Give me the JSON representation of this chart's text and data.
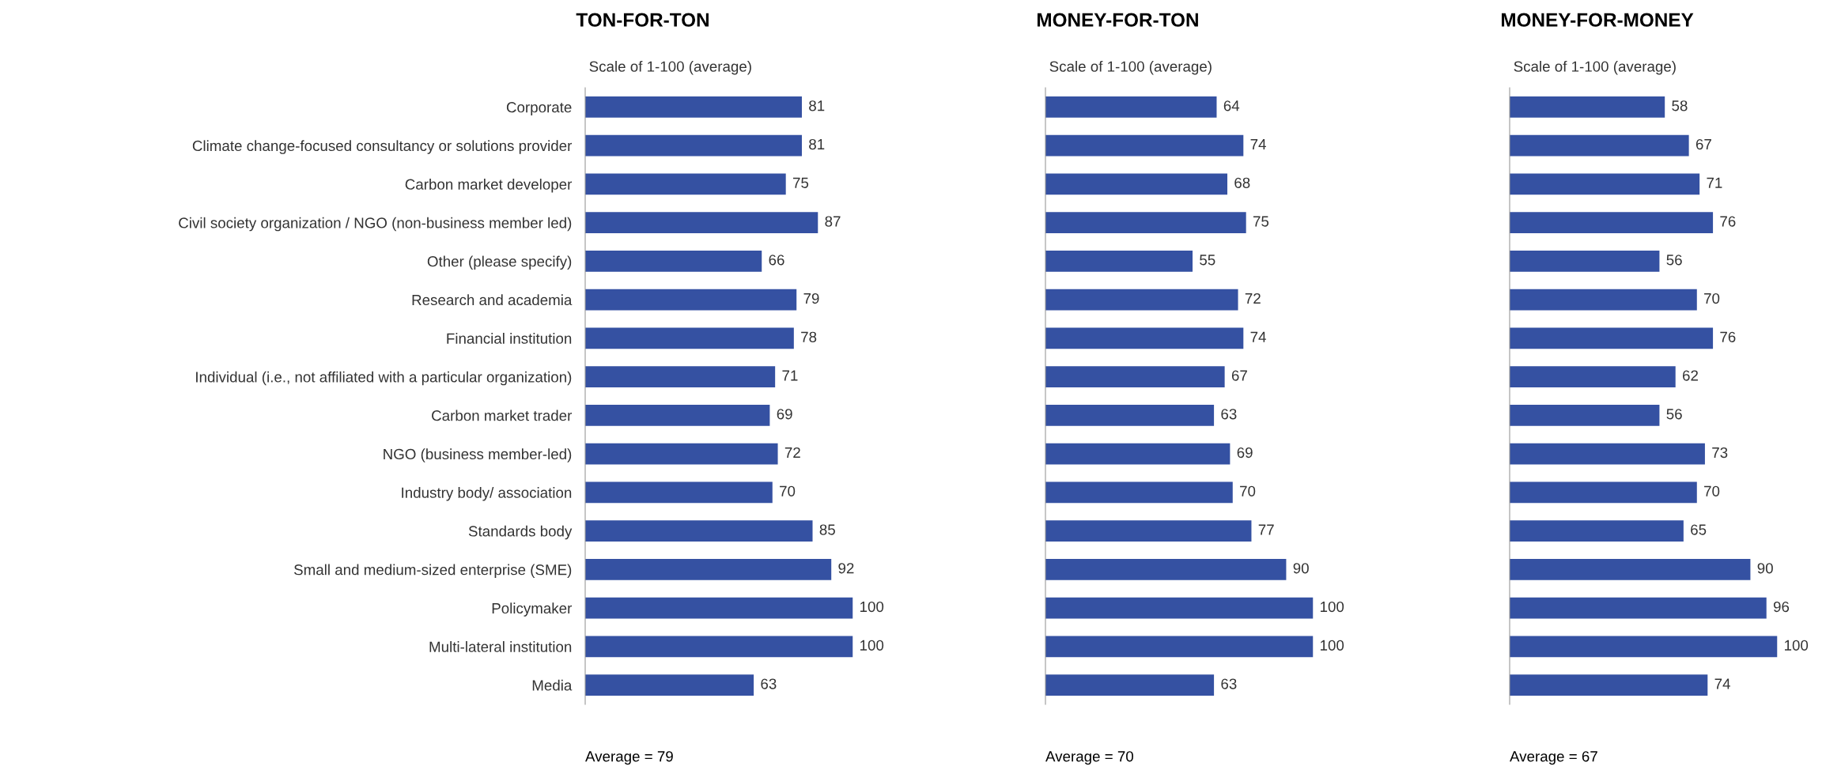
{
  "chart_data": [
    {
      "type": "bar",
      "orientation": "horizontal",
      "title": "TON-FOR-TON",
      "subtitle": "Scale of 1-100 (average)",
      "annotations": [
        "Average = 79"
      ],
      "tick_labels": "y",
      "data_labels": true,
      "color": "#3551a2",
      "categories": [
        "Corporate",
        "Climate change-focused consultancy or solutions provider",
        "Carbon market developer",
        "Civil society organization / NGO (non-business member led)",
        "Other (please specify)",
        "Research and academia",
        "Financial institution",
        "Individual (i.e., not affiliated with a particular organization)",
        "Carbon market trader",
        "NGO (business member-led)",
        "Industry body/ association",
        "Standards body",
        "Small and medium-sized enterprise (SME)",
        "Policymaker",
        "Multi-lateral institution",
        "Media"
      ],
      "values": [
        81,
        81,
        75,
        87,
        66,
        79,
        78,
        71,
        69,
        72,
        70,
        85,
        92,
        100,
        100,
        63
      ]
    },
    {
      "type": "bar",
      "orientation": "horizontal",
      "title": "MONEY-FOR-TON",
      "subtitle": "Scale of 1-100 (average)",
      "annotations": [
        "Average = 70"
      ],
      "tick_labels": false,
      "data_labels": true,
      "color": "#3551a2",
      "categories": [
        null,
        null,
        null,
        null,
        null,
        null,
        null,
        null,
        null,
        null,
        null,
        null,
        null,
        null,
        null,
        null
      ],
      "values": [
        64,
        74,
        68,
        75,
        55,
        72,
        74,
        67,
        63,
        69,
        70,
        77,
        90,
        100,
        100,
        63
      ]
    },
    {
      "type": "bar",
      "orientation": "horizontal",
      "title": "MONEY-FOR-MONEY",
      "subtitle": "Scale of 1-100 (average)",
      "annotations": [
        "Average = 67"
      ],
      "tick_labels": false,
      "data_labels": true,
      "color": "#3551a2",
      "categories": [
        null,
        null,
        null,
        null,
        null,
        null,
        null,
        null,
        null,
        null,
        null,
        null,
        null,
        null,
        null,
        null
      ],
      "values": [
        58,
        67,
        71,
        76,
        56,
        70,
        76,
        62,
        56,
        73,
        70,
        65,
        90,
        96,
        100,
        74
      ]
    }
  ]
}
